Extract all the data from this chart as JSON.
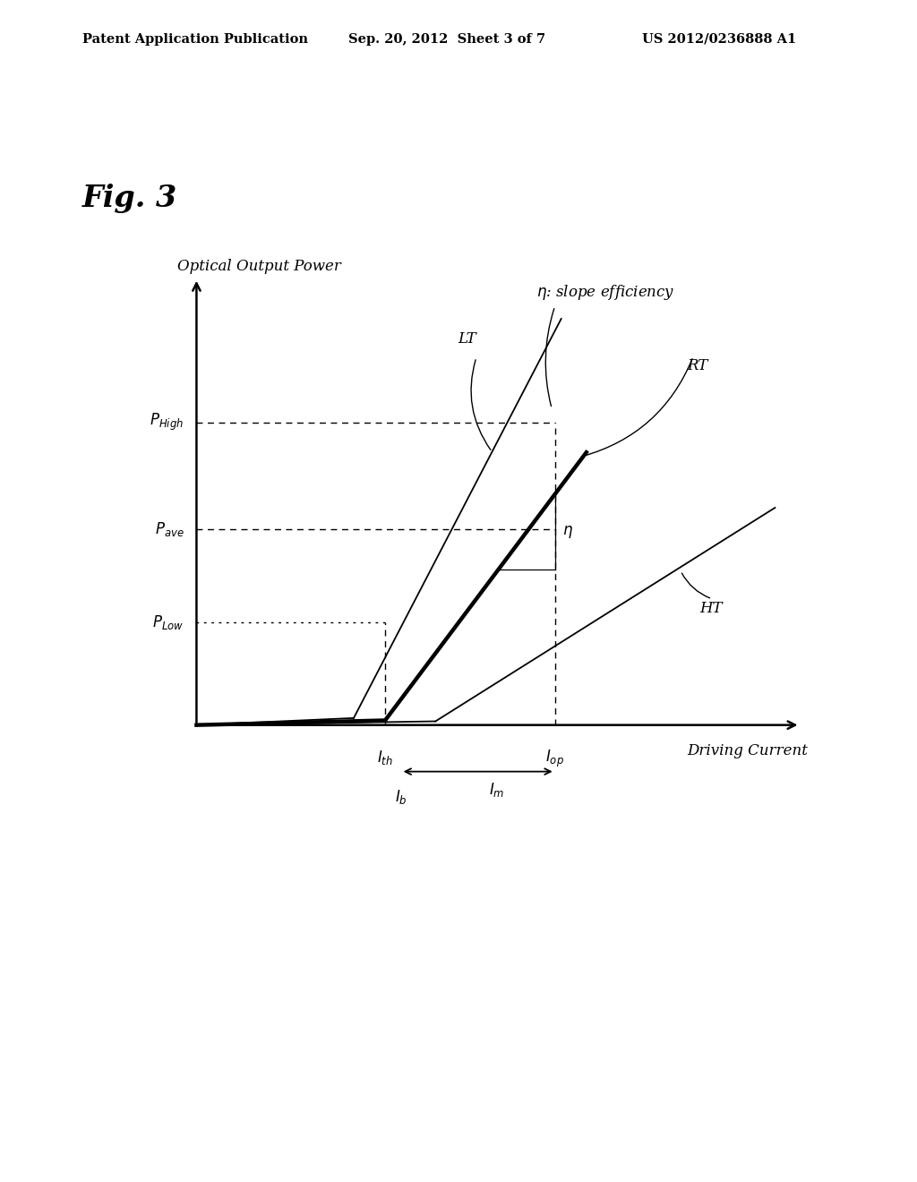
{
  "header_left": "Patent Application Publication",
  "header_center": "Sep. 20, 2012  Sheet 3 of 7",
  "header_right": "US 2012/0236888 A1",
  "background_color": "#ffffff",
  "ylabel": "Optical Output Power",
  "xlabel": "Driving Current",
  "fig_label": "Fig. 3",
  "lt_th": 2.5,
  "lt_slope": 2.6,
  "rt_th": 3.0,
  "rt_slope": 1.8,
  "ht_th": 3.8,
  "ht_slope": 0.85,
  "p_high_y": 6.5,
  "p_ave_y": 4.2,
  "p_low_y": 2.2,
  "ith_x": 3.0,
  "iop_x": 5.7,
  "ib_x": 3.25,
  "xmin": -0.5,
  "xmax": 10.0,
  "ymin": -2.2,
  "ymax": 10.5
}
